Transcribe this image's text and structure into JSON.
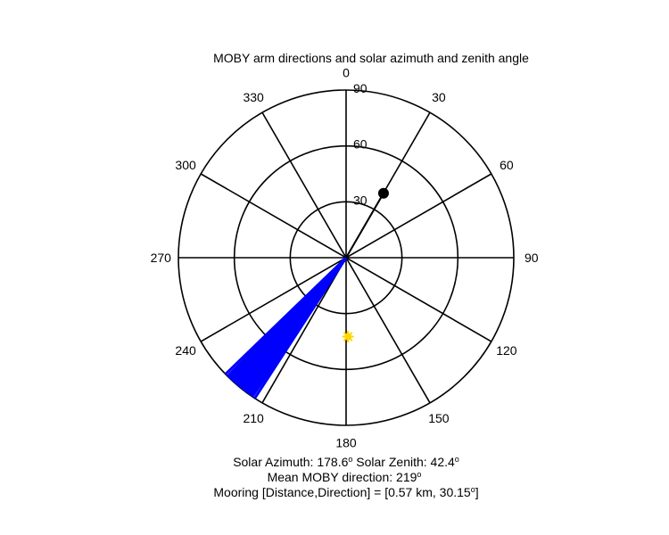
{
  "chart_data": {
    "type": "polar",
    "title": "MOBY arm directions and solar azimuth and zenith angle",
    "orientation": "0 at top, clockwise",
    "radial_axis": {
      "ticks": [
        30,
        60,
        90
      ],
      "tick_labels": [
        "30",
        "60",
        "90"
      ],
      "max": 90
    },
    "angle_ticks": [
      0,
      30,
      60,
      90,
      120,
      150,
      180,
      210,
      240,
      270,
      300,
      330
    ],
    "angle_tick_labels": [
      "0",
      "30",
      "60",
      "90",
      "120",
      "150",
      "180",
      "210",
      "240",
      "270",
      "300",
      "330"
    ],
    "grid": true,
    "series": [
      {
        "kind": "lines-from-origin",
        "color": "#0000ff",
        "directions": [
          213,
          214,
          214.5,
          215,
          215.5,
          216,
          216.5,
          217,
          217.5,
          218,
          218.5,
          219,
          219.5,
          220,
          220.5,
          221,
          221.5,
          222,
          222.5,
          223,
          223.5,
          224,
          224.5,
          225,
          226
        ],
        "radius": 90
      },
      {
        "kind": "vector",
        "color": "#000000",
        "direction": 30.15,
        "radius": 40,
        "marker": "circle"
      },
      {
        "kind": "point",
        "color": "#ffd700",
        "direction": 178.6,
        "radius": 42.4,
        "marker": "asterisk"
      }
    ],
    "annotations": {
      "solar_azimuth_label": "Solar Azimuth: 178.6",
      "solar_zenith_label": "Solar Zenith: 42.4",
      "mean_direction_label": "Mean MOBY direction: 219",
      "mooring_label": "Mooring [Distance,Direction] = [0.57 km, 30.15",
      "mooring_close": "]",
      "degree_symbol": "o"
    }
  }
}
